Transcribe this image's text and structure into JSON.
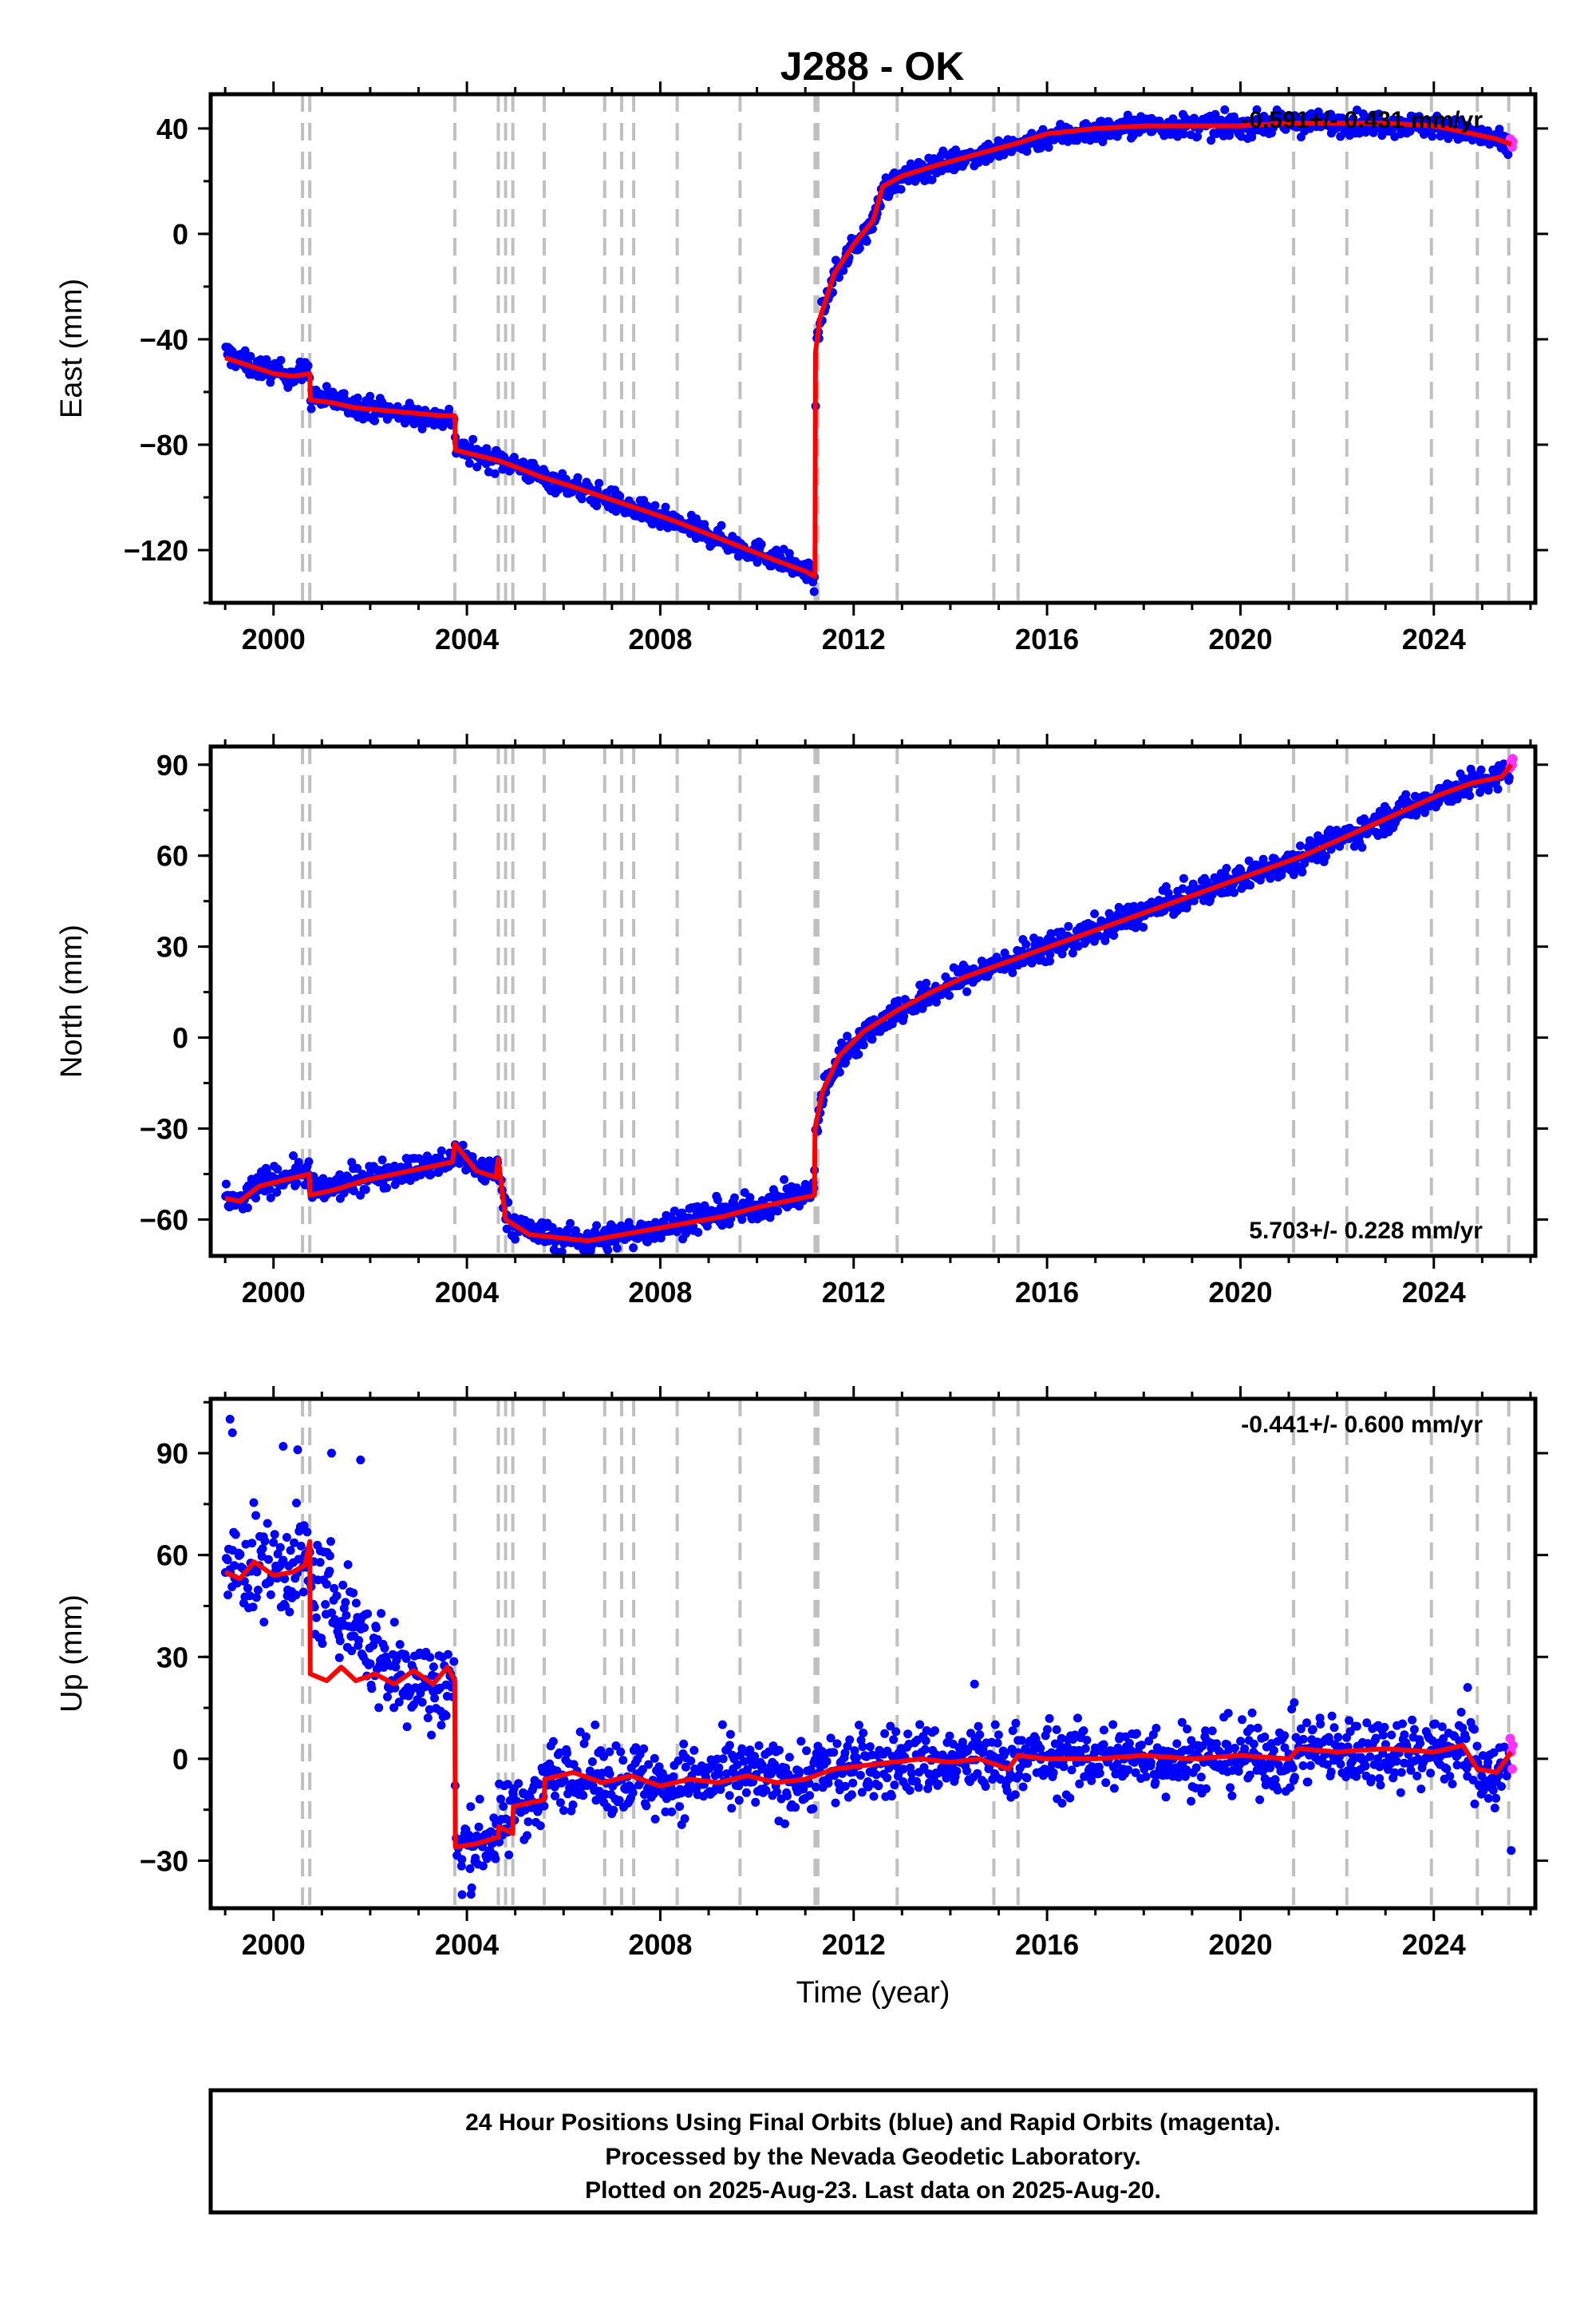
{
  "title": "J288 - OK",
  "colors": {
    "final_orbits": "#0000ff",
    "rapid_orbits": "#ff33ff",
    "model": "#ff0000",
    "event_lines": "#c0c0c0"
  },
  "chart_data": [
    {
      "type": "scatter",
      "ylabel": "East (mm)",
      "xlabel": "",
      "xlim": [
        1998.7,
        2026.1
      ],
      "ylim": [
        -140,
        53
      ],
      "xticks": [
        2000,
        2004,
        2008,
        2012,
        2016,
        2020,
        2024
      ],
      "yticks": [
        -120,
        -80,
        -40,
        0,
        40
      ],
      "rate_label": "-0.591+/- 0.431 mm/yr",
      "rate_position": "top-right",
      "event_lines": [
        2000.6,
        2000.75,
        2003.75,
        2004.65,
        2004.8,
        2004.95,
        2005.6,
        2006.85,
        2007.2,
        2007.45,
        2008.35,
        2009.65,
        2011.2,
        2011.26,
        2012.9,
        2014.9,
        2015.4,
        2021.1,
        2022.2,
        2023.95,
        2024.9,
        2025.55
      ],
      "model_series": {
        "name": "model",
        "x": [
          1999.0,
          1999.5,
          2000.0,
          2000.4,
          2000.75,
          2000.76,
          2001.2,
          2001.7,
          2002.3,
          2002.9,
          2003.5,
          2003.75,
          2003.76,
          2004.2,
          2004.65,
          2004.95,
          2005.5,
          2006.2,
          2006.85,
          2007.5,
          2008.3,
          2009.0,
          2009.7,
          2010.4,
          2011.0,
          2011.2,
          2011.21,
          2011.3,
          2011.6,
          2012.0,
          2012.4,
          2012.6,
          2013.0,
          2013.7,
          2014.5,
          2015.3,
          2016.0,
          2017.0,
          2018.0,
          2019.0,
          2020.0,
          2021.0,
          2022.0,
          2023.0,
          2024.0,
          2024.8,
          2025.3,
          2025.6
        ],
        "y": [
          -47,
          -50,
          -53,
          -54,
          -53,
          -63,
          -64,
          -66,
          -67,
          -68,
          -69,
          -69,
          -82,
          -84,
          -86,
          -88,
          -92,
          -96,
          -100,
          -104,
          -109,
          -114,
          -119,
          -124,
          -128,
          -130,
          -45,
          -32,
          -15,
          -4,
          5,
          18,
          22,
          26,
          30,
          34,
          38,
          40,
          41,
          41,
          41,
          42,
          42,
          42,
          41,
          38,
          36,
          34
        ]
      },
      "final_series": {
        "name": "",
        "x": [
          1999.0,
          1999.5,
          2000.0,
          2000.4,
          2000.74,
          2000.77,
          2001.2,
          2001.7,
          2002.3,
          2002.9,
          2003.5,
          2003.74,
          2003.77,
          2004.2,
          2004.65,
          2004.95,
          2005.5,
          2006.2,
          2006.85,
          2007.5,
          2008.3,
          2009.0,
          2009.7,
          2010.4,
          2011.0,
          2011.19,
          2011.22,
          2011.3,
          2011.6,
          2012.0,
          2012.4,
          2012.6,
          2013.0,
          2013.7,
          2014.5,
          2015.3,
          2016.0,
          2017.0,
          2018.0,
          2019.0,
          2020.0,
          2021.0,
          2022.0,
          2023.0,
          2024.0,
          2024.8,
          2025.3,
          2025.57
        ],
        "y": [
          -45,
          -50,
          -52,
          -54,
          -52,
          -62,
          -63,
          -65,
          -67,
          -69,
          -70,
          -70,
          -81,
          -84,
          -86,
          -87,
          -92,
          -96,
          -100,
          -105,
          -110,
          -114,
          -119,
          -123,
          -128,
          -131,
          -47,
          -33,
          -16,
          -5,
          4,
          17,
          21,
          26,
          30,
          33,
          37,
          39,
          41,
          41,
          41,
          42,
          42,
          42,
          41,
          38,
          35,
          33
        ],
        "scatter_mm": 3.0
      },
      "rapid_series": {
        "name": "",
        "x": [
          2025.58,
          2025.6,
          2025.62,
          2025.63
        ],
        "y": [
          36,
          34,
          33,
          35
        ],
        "scatter_mm": 1.5
      }
    },
    {
      "type": "scatter",
      "ylabel": "North (mm)",
      "xlabel": "",
      "xlim": [
        1998.7,
        2026.1
      ],
      "ylim": [
        -72,
        96
      ],
      "xticks": [
        2000,
        2004,
        2008,
        2012,
        2016,
        2020,
        2024
      ],
      "yticks": [
        -60,
        -30,
        0,
        30,
        60,
        90
      ],
      "rate_label": "5.703+/- 0.228 mm/yr",
      "rate_position": "bottom-right",
      "event_lines": [
        2000.6,
        2000.75,
        2003.75,
        2004.65,
        2004.8,
        2004.95,
        2005.6,
        2006.85,
        2007.2,
        2007.45,
        2008.35,
        2009.65,
        2011.2,
        2011.26,
        2012.9,
        2014.9,
        2015.4,
        2021.1,
        2022.2,
        2023.95,
        2024.9,
        2025.55
      ],
      "model_series": {
        "name": "model",
        "x": [
          1999.0,
          1999.3,
          1999.7,
          2000.2,
          2000.74,
          2000.75,
          2001.3,
          2001.9,
          2002.5,
          2003.1,
          2003.7,
          2003.75,
          2004.2,
          2004.6,
          2004.65,
          2004.8,
          2005.3,
          2005.9,
          2006.5,
          2007.2,
          2007.9,
          2008.6,
          2009.3,
          2010.0,
          2010.6,
          2011.19,
          2011.2,
          2011.35,
          2011.7,
          2012.2,
          2012.9,
          2013.6,
          2014.3,
          2015.0,
          2015.7,
          2016.4,
          2017.1,
          2017.8,
          2018.5,
          2019.2,
          2019.9,
          2020.6,
          2021.3,
          2022.0,
          2022.7,
          2023.4,
          2024.1,
          2024.8,
          2025.4,
          2025.6
        ],
        "y": [
          -53,
          -54,
          -49,
          -47,
          -45,
          -52,
          -50,
          -47,
          -45,
          -43,
          -41,
          -35,
          -44,
          -46,
          -40,
          -60,
          -65,
          -66,
          -67,
          -65,
          -63,
          -61,
          -59,
          -56,
          -54,
          -52,
          -30,
          -18,
          -6,
          2,
          9,
          15,
          20,
          24,
          28,
          32,
          36,
          40,
          44,
          48,
          52,
          56,
          60,
          65,
          70,
          75,
          80,
          84,
          86,
          90
        ],
        "scatter_mm": 3.0
      },
      "final_series": {
        "name": "",
        "x": [
          1999.0,
          1999.3,
          1999.7,
          2000.2,
          2000.74,
          2000.76,
          2001.3,
          2001.9,
          2002.5,
          2003.1,
          2003.7,
          2003.76,
          2004.2,
          2004.6,
          2004.64,
          2004.82,
          2005.3,
          2005.9,
          2006.5,
          2007.2,
          2007.9,
          2008.6,
          2009.3,
          2010.0,
          2010.6,
          2011.18,
          2011.21,
          2011.35,
          2011.7,
          2012.2,
          2012.9,
          2013.6,
          2014.3,
          2015.0,
          2015.7,
          2016.4,
          2017.1,
          2017.8,
          2018.5,
          2019.2,
          2019.9,
          2020.6,
          2021.3,
          2022.0,
          2022.7,
          2023.4,
          2024.1,
          2024.8,
          2025.4,
          2025.57
        ],
        "y": [
          -52,
          -55,
          -48,
          -46,
          -44,
          -51,
          -49,
          -46,
          -44,
          -43,
          -41,
          -37,
          -43,
          -45,
          -41,
          -59,
          -64,
          -66,
          -67,
          -65,
          -63,
          -60,
          -58,
          -56,
          -53,
          -51,
          -31,
          -19,
          -7,
          1,
          9,
          14,
          20,
          24,
          28,
          32,
          36,
          40,
          44,
          48,
          52,
          56,
          60,
          65,
          70,
          75,
          80,
          84,
          86,
          88
        ],
        "scatter_mm": 3.2
      },
      "rapid_series": {
        "name": "",
        "x": [
          2025.58,
          2025.6,
          2025.62,
          2025.63
        ],
        "y": [
          89,
          91,
          90,
          92
        ],
        "scatter_mm": 1.5
      }
    },
    {
      "type": "scatter",
      "ylabel": "Up (mm)",
      "xlabel": "Time (year)",
      "xlim": [
        1998.7,
        2026.1
      ],
      "ylim": [
        -44,
        106
      ],
      "xticks": [
        2000,
        2004,
        2008,
        2012,
        2016,
        2020,
        2024
      ],
      "yticks": [
        -30,
        0,
        30,
        60,
        90
      ],
      "rate_label": "-0.441+/- 0.600 mm/yr",
      "rate_position": "top-right",
      "event_lines": [
        2000.6,
        2000.75,
        2003.75,
        2004.65,
        2004.8,
        2004.95,
        2005.6,
        2006.85,
        2007.2,
        2007.45,
        2008.35,
        2009.65,
        2011.2,
        2011.26,
        2012.9,
        2014.9,
        2015.4,
        2021.1,
        2022.2,
        2023.95,
        2024.9,
        2025.55
      ],
      "model_series": {
        "name": "model",
        "x": [
          1999.0,
          1999.3,
          1999.6,
          2000.0,
          2000.4,
          2000.65,
          2000.75,
          2000.76,
          2001.1,
          2001.4,
          2001.7,
          2002.1,
          2002.5,
          2002.9,
          2003.3,
          2003.6,
          2003.75,
          2003.76,
          2004.2,
          2004.65,
          2004.66,
          2004.95,
          2004.96,
          2005.6,
          2005.61,
          2006.2,
          2006.8,
          2007.4,
          2008.0,
          2008.6,
          2009.2,
          2009.8,
          2010.4,
          2011.0,
          2011.2,
          2011.6,
          2012.2,
          2012.8,
          2013.4,
          2014.0,
          2014.6,
          2015.2,
          2015.4,
          2016.0,
          2017.0,
          2018.0,
          2019.0,
          2020.0,
          2021.0,
          2021.2,
          2022.0,
          2023.0,
          2024.0,
          2024.6,
          2024.9,
          2025.3,
          2025.6
        ],
        "y": [
          55,
          53,
          58,
          54,
          55,
          57,
          64,
          25,
          23,
          27,
          23,
          25,
          22,
          26,
          22,
          27,
          23,
          -26,
          -25,
          -23,
          -20,
          -22,
          -14,
          -12,
          -6,
          -4,
          -7,
          -5,
          -8,
          -6,
          -7,
          -5,
          -7,
          -6,
          -5,
          -3,
          -2,
          -1,
          0,
          -1,
          0,
          -3,
          1,
          0,
          0,
          1,
          0,
          1,
          0,
          3,
          2,
          3,
          2,
          4,
          -3,
          -4,
          2
        ],
        "scatter_mm": 6.0
      },
      "final_series": {
        "name": "",
        "x": [
          1999.0,
          1999.3,
          1999.6,
          2000.0,
          2000.4,
          2000.65,
          2000.74,
          2000.77,
          2001.1,
          2001.4,
          2001.7,
          2002.1,
          2002.5,
          2002.9,
          2003.3,
          2003.6,
          2003.74,
          2003.77,
          2004.2,
          2004.64,
          2004.67,
          2004.94,
          2004.97,
          2005.59,
          2005.62,
          2006.2,
          2006.8,
          2007.4,
          2008.0,
          2008.6,
          2009.2,
          2009.8,
          2010.4,
          2011.0,
          2011.2,
          2011.6,
          2012.2,
          2012.8,
          2013.4,
          2014.0,
          2014.6,
          2015.2,
          2015.4,
          2016.0,
          2017.0,
          2018.0,
          2019.0,
          2020.0,
          2021.0,
          2021.2,
          2022.0,
          2023.0,
          2024.0,
          2024.6,
          2024.9,
          2025.3,
          2025.57
        ],
        "y": [
          56,
          55,
          58,
          56,
          57,
          58,
          60,
          50,
          48,
          45,
          40,
          30,
          25,
          24,
          21,
          23,
          22,
          -27,
          -25,
          -22,
          -19,
          -18,
          -13,
          -11,
          -5,
          -3,
          -6,
          -5,
          -8,
          -6,
          -6,
          -5,
          -6,
          -6,
          -4,
          -3,
          -2,
          -1,
          0,
          -1,
          0,
          -2,
          1,
          0,
          0,
          1,
          0,
          1,
          0,
          3,
          2,
          3,
          2,
          3,
          -2,
          -5,
          -3
        ],
        "scatter_mm": 7.5
      },
      "rapid_series": {
        "name": "",
        "x": [
          2025.58,
          2025.6,
          2025.62,
          2025.63
        ],
        "y": [
          6,
          2,
          -3,
          4
        ],
        "scatter_mm": 3.0
      }
    }
  ],
  "footer": {
    "line1": "24 Hour Positions Using Final Orbits (blue) and Rapid Orbits (magenta).",
    "line2": "Processed by the Nevada Geodetic Laboratory.",
    "line3": "Plotted on 2025-Aug-23. Last data on 2025-Aug-20."
  }
}
